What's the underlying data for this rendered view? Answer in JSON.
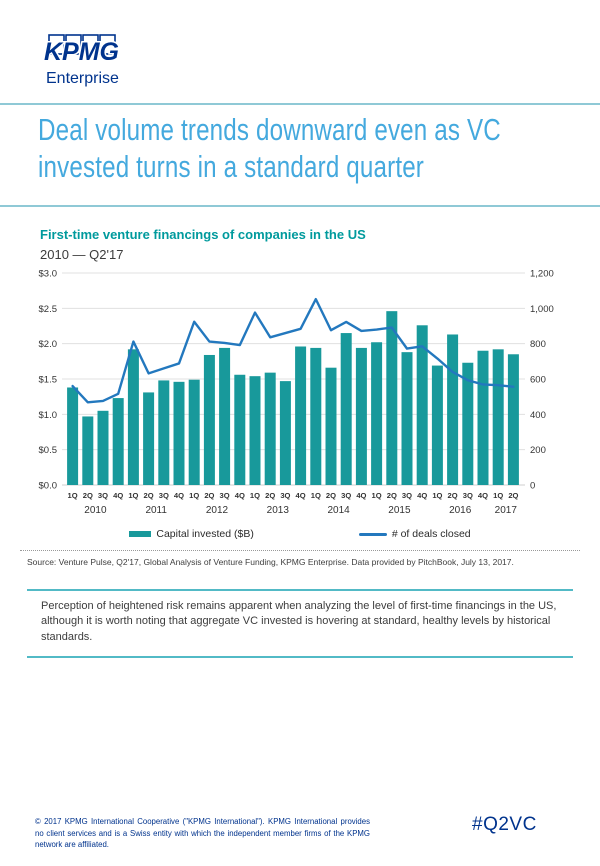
{
  "header": {
    "logo_text": "KPMG",
    "logo_sub": "Enterprise"
  },
  "title_lines": {
    "line1": "Deal volume trends downward even as VC",
    "line2": "invested turns in a standard quarter"
  },
  "chart": {
    "title": "First-time venture financings of companies in the US",
    "subtitle": "2010 — Q2'17",
    "legend": {
      "bar_label": "Capital invested ($B)",
      "line_label": "# of deals closed"
    }
  },
  "chart_data": {
    "type": "bar",
    "subtype": "combo-bar-line",
    "title": "First-time venture financings of companies in the US",
    "subtitle": "2010 — Q2'17",
    "categories": [
      "1Q",
      "2Q",
      "3Q",
      "4Q",
      "1Q",
      "2Q",
      "3Q",
      "4Q",
      "1Q",
      "2Q",
      "3Q",
      "4Q",
      "1Q",
      "2Q",
      "3Q",
      "4Q",
      "1Q",
      "2Q",
      "3Q",
      "4Q",
      "1Q",
      "2Q",
      "3Q",
      "4Q",
      "1Q",
      "2Q",
      "3Q",
      "4Q",
      "1Q",
      "2Q"
    ],
    "year_groups": [
      {
        "label": "2010",
        "quarters": 4
      },
      {
        "label": "2011",
        "quarters": 4
      },
      {
        "label": "2012",
        "quarters": 4
      },
      {
        "label": "2013",
        "quarters": 4
      },
      {
        "label": "2014",
        "quarters": 4
      },
      {
        "label": "2015",
        "quarters": 4
      },
      {
        "label": "2016",
        "quarters": 4
      },
      {
        "label": "2017",
        "quarters": 2
      }
    ],
    "series": [
      {
        "name": "Capital invested ($B)",
        "type": "bar",
        "axis": "left",
        "color": "#18999b",
        "values": [
          1.38,
          0.97,
          1.05,
          1.23,
          1.92,
          1.31,
          1.48,
          1.46,
          1.49,
          1.84,
          1.94,
          1.56,
          1.54,
          1.59,
          1.47,
          1.96,
          1.94,
          1.66,
          2.15,
          1.94,
          2.02,
          2.46,
          1.88,
          2.26,
          1.69,
          2.13,
          1.73,
          1.9,
          1.92,
          1.85
        ]
      },
      {
        "name": "# of deals closed",
        "type": "line",
        "axis": "right",
        "color": "#2378be",
        "values": [
          560,
          468,
          476,
          516,
          812,
          632,
          660,
          688,
          924,
          812,
          804,
          792,
          976,
          836,
          860,
          884,
          1052,
          876,
          923,
          872,
          880,
          891,
          772,
          785,
          716,
          640,
          593,
          569,
          565,
          556
        ]
      }
    ],
    "left_axis": {
      "min": 0,
      "max": 3,
      "step": 0.5,
      "labels": [
        "$0.0",
        "$0.5",
        "$1.0",
        "$1.5",
        "$2.0",
        "$2.5",
        "$3.0"
      ]
    },
    "right_axis": {
      "min": 0,
      "max": 1200,
      "step": 200,
      "labels": [
        "0",
        "200",
        "400",
        "600",
        "800",
        "1,000",
        "1,200"
      ]
    },
    "grid": true,
    "legend_position": "bottom"
  },
  "source": "Source: Venture Pulse, Q2'17, Global Analysis of Venture Funding, KPMG Enterprise. Data provided by PitchBook, July 13, 2017.",
  "callout": "Perception of heightened risk remains apparent when analyzing the level of first-time financings in the US, although it is worth noting that aggregate VC invested is hovering at standard, healthy levels by historical standards.",
  "footer": {
    "copyright": "© 2017 KPMG International Cooperative (\"KPMG International\"). KPMG International provides no client services and is a Swiss entity with which the independent member firms of the KPMG network are affiliated.",
    "hashtag": "#Q2VC"
  },
  "colors": {
    "kpmg_blue": "#00338d",
    "headline_blue": "#44a9de",
    "teal": "#009a9d",
    "bar_teal": "#18999b",
    "line_blue": "#2378be",
    "rule": "#8fc9d6",
    "callout_border": "#52bac6",
    "gridline": "#e0e0e0"
  }
}
